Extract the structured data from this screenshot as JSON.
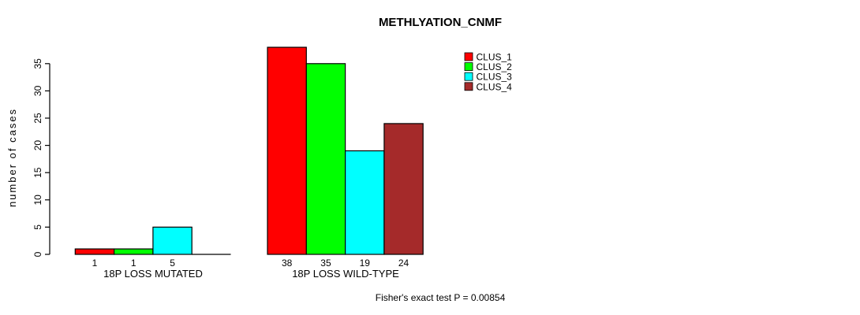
{
  "chart_data": {
    "type": "bar",
    "title": "METHLYATION_CNMF",
    "ylabel": "number of cases",
    "footnote": "Fisher's exact test P = 0.00854",
    "categories": [
      "18P LOSS MUTATED",
      "18P LOSS WILD-TYPE"
    ],
    "series": [
      {
        "name": "CLUS_1",
        "color": "#ff0000",
        "values": [
          1,
          38
        ]
      },
      {
        "name": "CLUS_2",
        "color": "#00ff00",
        "values": [
          1,
          35
        ]
      },
      {
        "name": "CLUS_3",
        "color": "#00ffff",
        "values": [
          5,
          19
        ]
      },
      {
        "name": "CLUS_4",
        "color": "#a52a2a",
        "values": [
          0,
          24
        ]
      }
    ],
    "yticks": [
      0,
      5,
      10,
      15,
      20,
      25,
      30,
      35
    ],
    "ylim": [
      0,
      35
    ],
    "bar_value_labels": true,
    "zero_bars_unlabeled": true,
    "legend_position": "top-right",
    "grid": false,
    "axis_color": "#000000",
    "background": "#ffffff"
  }
}
